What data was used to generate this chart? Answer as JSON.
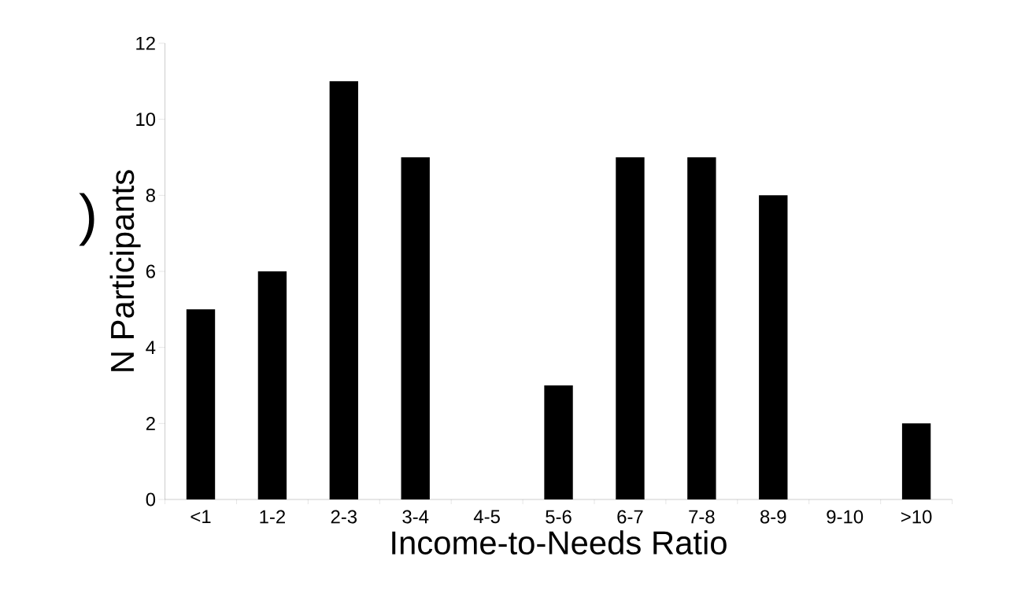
{
  "chart_data": {
    "type": "bar",
    "xlabel": "Income-to-Needs Ratio",
    "ylabel": "N Participants",
    "categories": [
      "<1",
      "1-2",
      "2-3",
      "3-4",
      "4-5",
      "5-6",
      "6-7",
      "7-8",
      "8-9",
      "9-10",
      ">10"
    ],
    "values": [
      5,
      6,
      11,
      9,
      0,
      3,
      9,
      9,
      8,
      0,
      2
    ],
    "color": "#000000",
    "ylim": [
      0,
      12
    ],
    "yticks": [
      0,
      2,
      4,
      6,
      8,
      10,
      12
    ],
    "annotations": [
      ")"
    ]
  }
}
